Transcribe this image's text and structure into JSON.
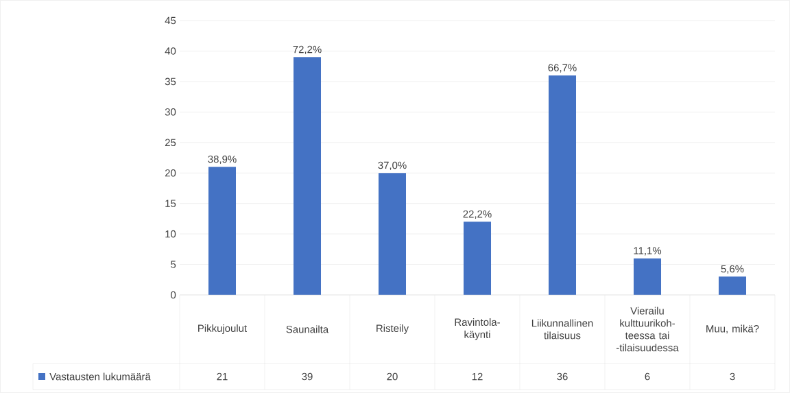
{
  "chart_data": {
    "type": "bar",
    "categories": [
      "Pikkujoulut",
      "Saunailta",
      "Risteily",
      "Ravintola-käynti",
      "Liikunnallinen tilaisuus",
      "Vierailu kulttuurikoh-teessa tai -tilaisuudessa",
      "Muu, mikä?"
    ],
    "series": [
      {
        "name": "Vastausten lukumäärä",
        "color": "#4472c4",
        "values": [
          21,
          39,
          20,
          12,
          36,
          6,
          3
        ],
        "value_labels": [
          "21",
          "39",
          "20",
          "12",
          "36",
          "6",
          "3"
        ]
      }
    ],
    "annotations": [
      {
        "text": "38,9%",
        "x": "Pikkujoulut",
        "y": 21
      },
      {
        "text": "72,2%",
        "x": "Saunailta",
        "y": 39
      },
      {
        "text": "37,0%",
        "x": "Risteily",
        "y": 20
      },
      {
        "text": "22,2%",
        "x": "Ravintola-käynti",
        "y": 12
      },
      {
        "text": "66,7%",
        "x": "Liikunnallinen tilaisuus",
        "y": 36
      },
      {
        "text": "11,1%",
        "x": "Vierailu kulttuurikoh-teessa tai -tilaisuudessa",
        "y": 6
      },
      {
        "text": "5,6%",
        "x": "Muu, mikä?",
        "y": 3
      }
    ],
    "ylim": [
      0,
      45
    ],
    "yticks": [
      0,
      5,
      10,
      15,
      20,
      25,
      30,
      35,
      40,
      45
    ],
    "grid": "y",
    "legend": "bottom"
  }
}
